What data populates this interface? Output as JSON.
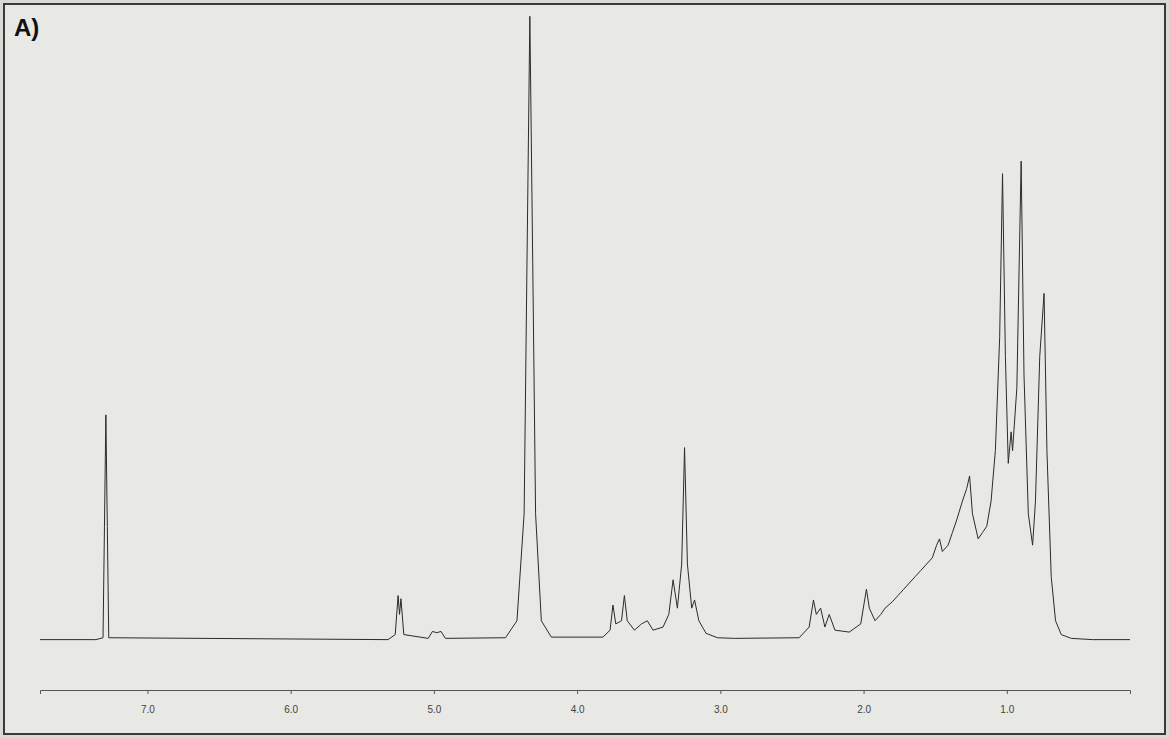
{
  "chart_data": {
    "type": "line",
    "title": "A)",
    "x": [
      7.75,
      7.36,
      7.31,
      7.3,
      7.29,
      7.28,
      7.27,
      5.32,
      5.27,
      5.25,
      5.24,
      5.23,
      5.21,
      5.04,
      5.01,
      4.98,
      4.95,
      4.92,
      4.5,
      4.42,
      4.37,
      4.35,
      4.33,
      4.31,
      4.29,
      4.25,
      4.18,
      3.82,
      3.77,
      3.75,
      3.73,
      3.69,
      3.67,
      3.65,
      3.6,
      3.55,
      3.51,
      3.47,
      3.4,
      3.36,
      3.33,
      3.3,
      3.27,
      3.25,
      3.23,
      3.2,
      3.18,
      3.15,
      3.1,
      3.02,
      2.9,
      2.45,
      2.38,
      2.35,
      2.33,
      2.3,
      2.27,
      2.24,
      2.2,
      2.1,
      2.02,
      1.98,
      1.96,
      1.92,
      1.88,
      1.85,
      1.8,
      1.76,
      1.72,
      1.68,
      1.64,
      1.6,
      1.56,
      1.52,
      1.49,
      1.47,
      1.45,
      1.41,
      1.38,
      1.35,
      1.31,
      1.28,
      1.26,
      1.24,
      1.2,
      1.17,
      1.14,
      1.11,
      1.08,
      1.05,
      1.03,
      1.01,
      0.99,
      0.97,
      0.96,
      0.93,
      0.9,
      0.88,
      0.85,
      0.82,
      0.8,
      0.77,
      0.74,
      0.72,
      0.69,
      0.66,
      0.62,
      0.55,
      0.4,
      0.14
    ],
    "values": [
      0,
      0,
      0.3,
      18,
      35.7,
      18,
      0.3,
      0,
      0.8,
      7,
      4,
      6.5,
      0.8,
      0.2,
      1.3,
      1.1,
      1.3,
      0.2,
      0.3,
      3,
      20,
      60,
      99,
      60,
      20,
      3,
      0.4,
      0.4,
      1.5,
      5.5,
      2.5,
      3,
      7,
      3,
      1.5,
      2.5,
      3,
      1.5,
      2,
      4,
      9.5,
      5,
      12,
      30.5,
      12,
      5,
      6.3,
      3,
      1,
      0.3,
      0.2,
      0.3,
      2,
      6.3,
      4,
      5,
      2,
      4,
      1.5,
      1.2,
      2.5,
      8,
      5,
      3,
      4,
      5,
      6,
      7,
      8,
      9,
      10,
      11,
      12,
      13,
      15,
      16,
      14,
      15,
      17,
      19,
      22,
      24,
      26,
      20,
      16,
      17,
      18,
      22,
      30,
      48,
      74,
      45,
      28,
      33,
      30,
      40,
      76,
      42,
      20,
      15,
      22,
      45,
      55,
      30,
      10,
      3,
      0.8,
      0.2,
      0,
      0
    ],
    "color": "#2b2b2b",
    "xlim": [
      7.75,
      0.14
    ],
    "xticks": [
      {
        "value": 7,
        "label": "7.0"
      },
      {
        "value": 6,
        "label": "6.0"
      },
      {
        "value": 5,
        "label": "5.0"
      },
      {
        "value": 4,
        "label": "4.0"
      },
      {
        "value": 3,
        "label": "3.0"
      },
      {
        "value": 2,
        "label": "2.0"
      },
      {
        "value": 1,
        "label": "1.0"
      }
    ],
    "ylim": [
      -8,
      100
    ],
    "yticks": [],
    "grid": false,
    "tick_labels": "x"
  }
}
